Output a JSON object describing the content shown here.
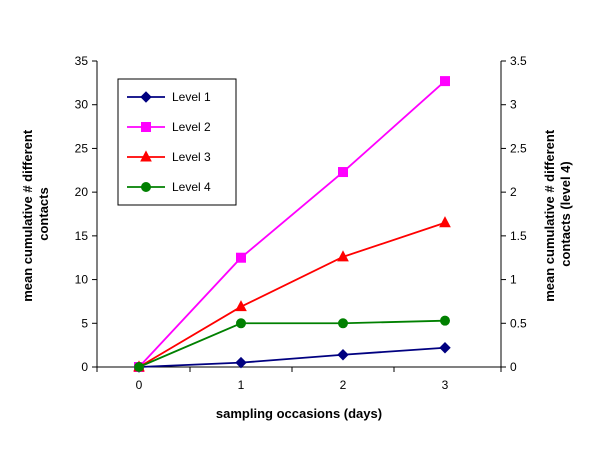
{
  "chart_data": {
    "type": "line",
    "x": [
      0,
      1,
      2,
      3
    ],
    "xlabel": "sampling occasions (days)",
    "ylabel_lines": [
      "mean cumulative # different",
      "contacts"
    ],
    "y2label_lines": [
      "mean cumulative # different",
      "contacts (level 4)"
    ],
    "ylim": [
      0,
      35
    ],
    "y2lim": [
      0,
      3.5
    ],
    "yticks": [
      "0",
      "5",
      "10",
      "15",
      "20",
      "25",
      "30",
      "35"
    ],
    "y2ticks": [
      "0",
      "0.5",
      "1",
      "1.5",
      "2",
      "2.5",
      "3",
      "3.5"
    ],
    "xticks": [
      "0",
      "1",
      "2",
      "3"
    ],
    "grid": false,
    "legend_position": "top-left",
    "series": [
      {
        "name": "Level 1",
        "values": [
          0,
          0.5,
          1.4,
          2.2
        ],
        "axis": "left",
        "color": "#000080",
        "marker": "diamond"
      },
      {
        "name": "Level 2",
        "values": [
          0,
          12.5,
          22.3,
          32.7
        ],
        "axis": "left",
        "color": "#FF00FF",
        "marker": "square"
      },
      {
        "name": "Level 3",
        "values": [
          0,
          6.9,
          12.6,
          16.5
        ],
        "axis": "left",
        "color": "#FF0000",
        "marker": "triangle"
      },
      {
        "name": "Level 4",
        "values": [
          0,
          0.5,
          0.5,
          0.53
        ],
        "axis": "right",
        "color": "#008000",
        "marker": "circle"
      }
    ]
  }
}
